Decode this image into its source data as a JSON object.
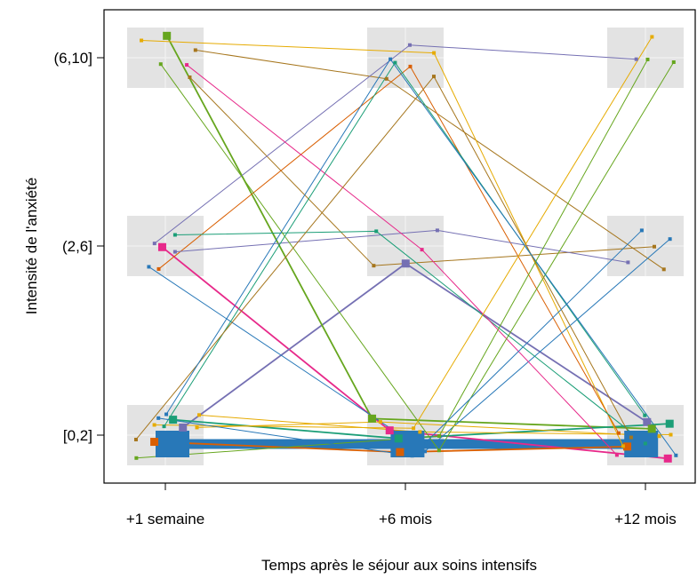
{
  "chart_data": {
    "type": "line",
    "xlabel": "Temps après le séjour aux soins intensifs",
    "ylabel": "Intensité de l'anxiété",
    "categories": [
      "+1 semaine",
      "+6 mois",
      "+12 mois"
    ],
    "y_levels": [
      "[0,2]",
      "(2,6]",
      "(6,10]"
    ],
    "grid": "light grey panel per category and level",
    "legend": "none",
    "series": [
      {
        "color": "#2878b8",
        "weight": 12,
        "values": [
          "[0,2]",
          "[0,2]",
          "[0,2]"
        ]
      },
      {
        "color": "#e7298a",
        "weight": 2,
        "values": [
          "(2,6]",
          "[0,2]",
          "[0,2]"
        ]
      },
      {
        "color": "#7570b3",
        "weight": 2,
        "values": [
          "[0,2]",
          "(2,6]",
          "[0,2]"
        ]
      },
      {
        "color": "#66a61e",
        "weight": 2,
        "values": [
          "(6,10]",
          "[0,2]",
          "[0,2]"
        ]
      },
      {
        "color": "#1b9e77",
        "weight": 2,
        "values": [
          "[0,2]",
          "[0,2]",
          "[0,2]"
        ]
      },
      {
        "color": "#d95f02",
        "weight": 2,
        "values": [
          "[0,2]",
          "[0,2]",
          "[0,2]"
        ]
      },
      {
        "color": "#e6ab02",
        "weight": 1,
        "values": [
          "[0,2]",
          "[0,2]",
          "[0,2]"
        ]
      },
      {
        "color": "#a6761d",
        "weight": 1,
        "values": [
          "(6,10]",
          "(2,6]",
          "(2,6]"
        ]
      },
      {
        "color": "#a6761d",
        "weight": 1,
        "values": [
          "(6,10]",
          "(6,10]",
          "(2,6]"
        ]
      },
      {
        "color": "#e6ab02",
        "weight": 1,
        "values": [
          "(6,10]",
          "(6,10]",
          "[0,2]"
        ]
      },
      {
        "color": "#7570b3",
        "weight": 1,
        "values": [
          "(2,6]",
          "(6,10]",
          "(6,10]"
        ]
      },
      {
        "color": "#d95f02",
        "weight": 1,
        "values": [
          "(2,6]",
          "(6,10]",
          "[0,2]"
        ]
      },
      {
        "color": "#7570b3",
        "weight": 1,
        "values": [
          "(2,6]",
          "(2,6]",
          "(2,6]"
        ]
      },
      {
        "color": "#2878b8",
        "weight": 1,
        "values": [
          "(2,6]",
          "[0,2]",
          "(2,6]"
        ]
      },
      {
        "color": "#1b9e77",
        "weight": 1,
        "values": [
          "(2,6]",
          "(2,6]",
          "[0,2]"
        ]
      },
      {
        "color": "#e7298a",
        "weight": 1,
        "values": [
          "(6,10]",
          "(2,6]",
          "[0,2]"
        ]
      },
      {
        "color": "#66a61e",
        "weight": 1,
        "values": [
          "(6,10]",
          "[0,2]",
          "(6,10]"
        ]
      },
      {
        "color": "#1b9e77",
        "weight": 1,
        "values": [
          "[0,2]",
          "(6,10]",
          "[0,2]"
        ]
      },
      {
        "color": "#a6761d",
        "weight": 1,
        "values": [
          "[0,2]",
          "(6,10]",
          "[0,2]"
        ]
      },
      {
        "color": "#e6ab02",
        "weight": 1,
        "values": [
          "[0,2]",
          "[0,2]",
          "(6,10]"
        ]
      },
      {
        "color": "#2878b8",
        "weight": 1,
        "values": [
          "[0,2]",
          "(6,10]",
          "[0,2]"
        ]
      },
      {
        "color": "#e6ab02",
        "weight": 1,
        "values": [
          "[0,2]",
          "[0,2]",
          "[0,2]"
        ]
      },
      {
        "color": "#66a61e",
        "weight": 1,
        "values": [
          "[0,2]",
          "[0,2]",
          "(6,10]"
        ]
      },
      {
        "color": "#2878b8",
        "weight": 1,
        "values": [
          "[0,2]",
          "[0,2]",
          "(2,6]"
        ]
      }
    ]
  }
}
